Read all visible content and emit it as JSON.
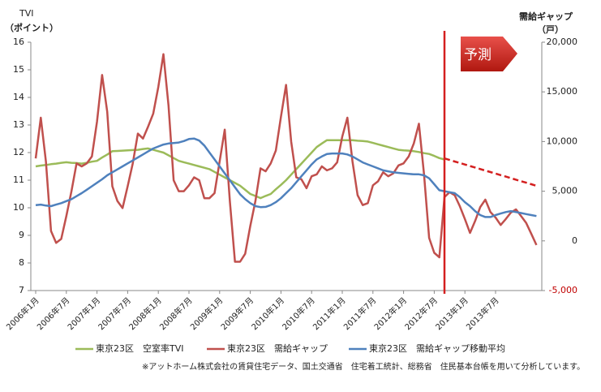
{
  "chart_data": {
    "type": "line",
    "left_axis_title": "TVI",
    "left_axis_unit": "（ポイント）",
    "right_axis_title": "需給ギャップ",
    "right_axis_unit": "（戸）",
    "annotation": "予測",
    "footnote": "※アットホーム株式会社の賃貸住宅データ、国土交通省　住宅着工統計、総務省　住民基本台帳を用いて分析しています。",
    "categories": [
      "2006年1月",
      null,
      null,
      null,
      null,
      null,
      "2006年7月",
      null,
      null,
      null,
      null,
      null,
      "2007年1月",
      null,
      null,
      null,
      null,
      null,
      "2007年7月",
      null,
      null,
      null,
      null,
      null,
      "2008年1月",
      null,
      null,
      null,
      null,
      null,
      "2008年7月",
      null,
      null,
      null,
      null,
      null,
      "2009年1月",
      null,
      null,
      null,
      null,
      null,
      "2009年7月",
      null,
      null,
      null,
      null,
      null,
      "2010年1月",
      null,
      null,
      null,
      null,
      null,
      "2010年7月",
      null,
      null,
      null,
      null,
      null,
      "2011年1月",
      null,
      null,
      null,
      null,
      null,
      "2011年7月",
      null,
      null,
      null,
      null,
      null,
      "2012年1月",
      null,
      null,
      null,
      null,
      null,
      "2012年7月",
      null,
      null,
      null,
      null,
      null,
      "2013年1月",
      null,
      null,
      null,
      null,
      null,
      "2013年7月",
      null,
      null,
      null,
      null,
      null,
      null,
      null,
      null
    ],
    "ylim": [
      7,
      16
    ],
    "yticks": [
      7,
      8,
      9,
      10,
      11,
      12,
      13,
      14,
      15,
      16
    ],
    "y2lim": [
      -5000,
      20000
    ],
    "y2ticks": [
      {
        "value": -5000,
        "label": "-5,000"
      },
      0,
      {
        "value": 5000,
        "label": "5,000"
      },
      {
        "value": 10000,
        "label": "10,000"
      },
      {
        "value": 15000,
        "label": "15,000"
      },
      {
        "value": 20000,
        "label": "20,000"
      }
    ],
    "series": [
      {
        "name": "東京23区　空室率TVI",
        "color": "#9bbb59",
        "values": [
          11.5,
          11.53,
          11.55,
          11.58,
          11.6,
          11.63,
          11.65,
          11.63,
          11.62,
          11.6,
          11.63,
          11.67,
          11.7,
          11.82,
          11.93,
          12.05,
          12.06,
          12.07,
          12.08,
          12.09,
          12.1,
          12.13,
          12.15,
          12.1,
          12.05,
          12.0,
          11.9,
          11.8,
          11.7,
          11.65,
          11.6,
          11.55,
          11.5,
          11.45,
          11.4,
          11.3,
          11.2,
          11.1,
          11.0,
          10.9,
          10.8,
          10.65,
          10.5,
          10.43,
          10.35,
          10.43,
          10.5,
          10.67,
          10.83,
          11.0,
          11.2,
          11.4,
          11.6,
          11.8,
          12.0,
          12.2,
          12.33,
          12.45,
          12.45,
          12.45,
          12.45,
          12.45,
          12.45,
          12.43,
          12.42,
          12.4,
          12.35,
          12.3,
          12.25,
          12.2,
          12.15,
          12.1,
          12.08,
          12.07,
          12.05,
          12.02,
          11.98,
          11.95,
          11.88,
          11.8,
          11.75,
          null,
          null,
          null,
          null,
          null,
          null,
          null,
          null,
          null,
          null,
          null,
          null,
          null,
          null,
          null,
          null,
          null,
          null
        ]
      },
      {
        "name": "東京23区　需給ギャップ",
        "color": "#c0504d",
        "axis": "y2",
        "values": [
          8300,
          12400,
          8000,
          1000,
          -200,
          200,
          2500,
          5000,
          7800,
          7500,
          7800,
          8500,
          12000,
          16700,
          13000,
          5500,
          4000,
          3300,
          5500,
          7800,
          10800,
          10300,
          11500,
          12800,
          15500,
          18800,
          13600,
          6100,
          5000,
          5000,
          5600,
          6400,
          6100,
          4300,
          4300,
          4800,
          8000,
          11200,
          4000,
          -2100,
          -2100,
          -1300,
          1500,
          4000,
          7300,
          7000,
          7800,
          9100,
          12500,
          15700,
          10000,
          6400,
          6200,
          5300,
          6500,
          6700,
          7500,
          7100,
          7300,
          7900,
          10500,
          12400,
          8000,
          4600,
          3600,
          3800,
          5600,
          6000,
          6900,
          6500,
          6800,
          7600,
          7800,
          8500,
          9800,
          11800,
          6700,
          300,
          -1200,
          -1650,
          4400,
          4900,
          4600,
          3500,
          2200,
          800,
          2000,
          3400,
          4150,
          2900,
          2350,
          1600,
          2200,
          2850,
          3170,
          2500,
          1800,
          700,
          -420
        ]
      },
      {
        "name": "東京23区　需給ギャップ移動平均",
        "color": "#4f81bd",
        "axis": "y2",
        "values": [
          3600,
          3650,
          3550,
          3500,
          3650,
          3800,
          4000,
          4200,
          4500,
          4800,
          5150,
          5500,
          5850,
          6200,
          6600,
          6900,
          7200,
          7500,
          7800,
          8100,
          8400,
          8700,
          9000,
          9300,
          9500,
          9700,
          9800,
          9850,
          9900,
          10050,
          10250,
          10300,
          10100,
          9600,
          8900,
          8200,
          7500,
          6800,
          6100,
          5400,
          4700,
          4200,
          3800,
          3500,
          3400,
          3420,
          3600,
          3900,
          4300,
          4800,
          5300,
          5900,
          6500,
          7100,
          7700,
          8200,
          8500,
          8750,
          8800,
          8800,
          8800,
          8700,
          8500,
          8200,
          7900,
          7700,
          7500,
          7300,
          7100,
          7000,
          6900,
          6850,
          6800,
          6750,
          6700,
          6700,
          6600,
          6300,
          5700,
          5100,
          5000,
          4900,
          4800,
          4400,
          3900,
          3500,
          3000,
          2600,
          2400,
          2400,
          2600,
          2750,
          2900,
          3000,
          2900,
          2800,
          2700,
          2600,
          2500
        ]
      }
    ],
    "forecast": {
      "color": "#d42020",
      "axis": "y2",
      "values": [
        null,
        null,
        null,
        null,
        null,
        null,
        null,
        null,
        null,
        null,
        null,
        null,
        null,
        null,
        null,
        null,
        null,
        null,
        null,
        null,
        null,
        null,
        null,
        null,
        null,
        null,
        null,
        null,
        null,
        null,
        null,
        null,
        null,
        null,
        null,
        null,
        null,
        null,
        null,
        null,
        null,
        null,
        null,
        null,
        null,
        null,
        null,
        null,
        null,
        null,
        null,
        null,
        null,
        null,
        null,
        null,
        null,
        null,
        null,
        null,
        null,
        null,
        null,
        null,
        null,
        null,
        null,
        null,
        null,
        null,
        null,
        null,
        null,
        null,
        null,
        null,
        null,
        null,
        null,
        null,
        8300,
        8147,
        7994,
        7842,
        7689,
        7536,
        7383,
        7231,
        7078,
        6925,
        6772,
        6619,
        6467,
        6314,
        6161,
        6008,
        5856,
        5703,
        5550
      ]
    }
  }
}
